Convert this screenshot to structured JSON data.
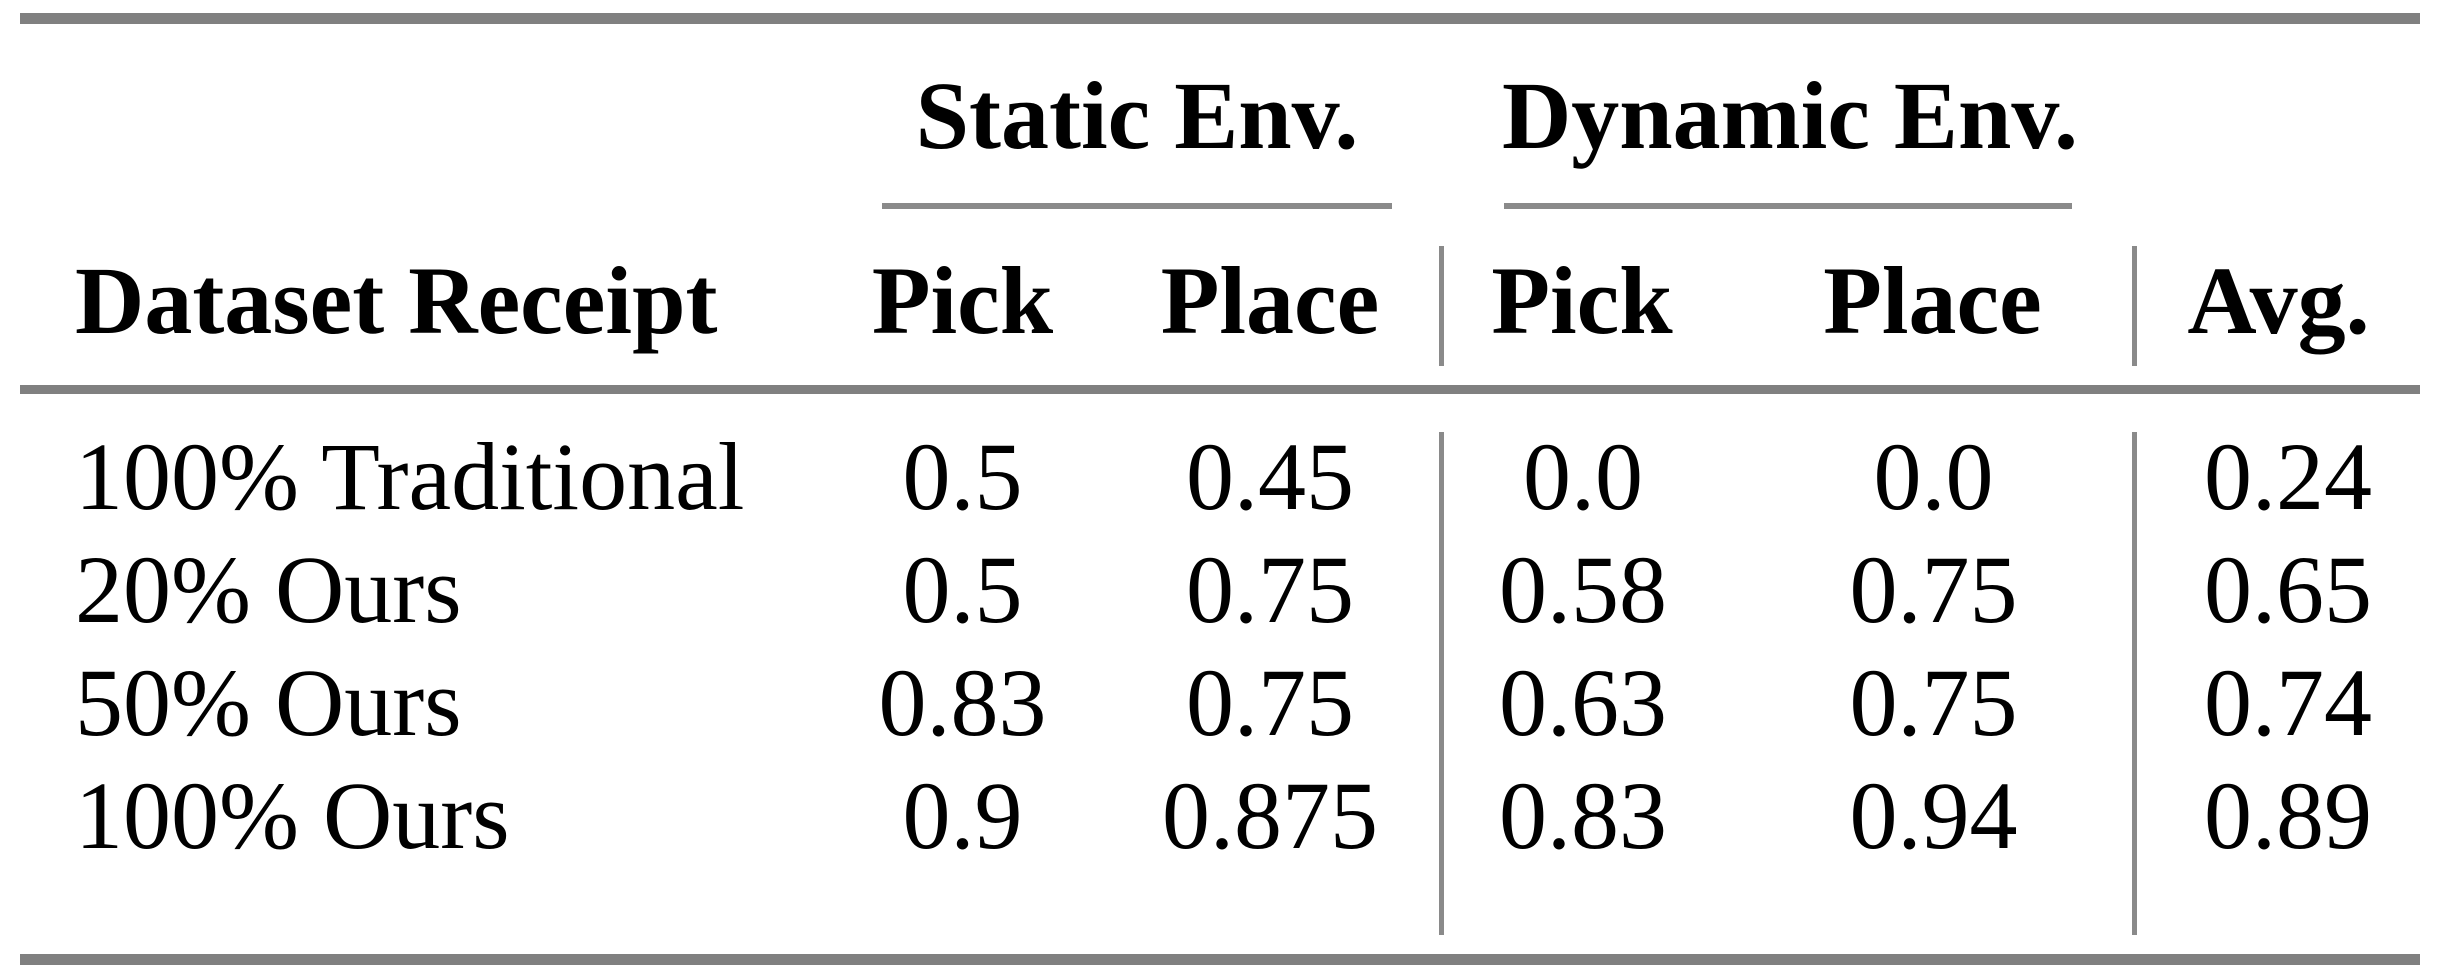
{
  "table": {
    "col_groups": {
      "static_label": "Static Env.",
      "dynamic_label": "Dynamic Env."
    },
    "headers": {
      "row_header": "Dataset Receipt",
      "static_pick": "Pick",
      "static_place": "Place",
      "dynamic_pick": "Pick",
      "dynamic_place": "Place",
      "avg": "Avg."
    },
    "rows": [
      {
        "dataset": "100% Traditional",
        "static_pick": "0.5",
        "static_place": "0.45",
        "dynamic_pick": "0.0",
        "dynamic_place": "0.0",
        "avg": "0.24"
      },
      {
        "dataset": "20% Ours",
        "static_pick": "0.5",
        "static_place": "0.75",
        "dynamic_pick": "0.58",
        "dynamic_place": "0.75",
        "avg": "0.65"
      },
      {
        "dataset": "50% Ours",
        "static_pick": "0.83",
        "static_place": "0.75",
        "dynamic_pick": "0.63",
        "dynamic_place": "0.75",
        "avg": "0.74"
      },
      {
        "dataset": "100% Ours",
        "static_pick": "0.9",
        "static_place": "0.875",
        "dynamic_pick": "0.83",
        "dynamic_place": "0.94",
        "avg": "0.89"
      }
    ],
    "colors": {
      "rule_gray": "#808080",
      "text": "#000000",
      "background": "#ffffff"
    }
  },
  "chart_data": {
    "type": "table",
    "title": "",
    "column_groups": [
      "",
      "Static Env.",
      "Static Env.",
      "Dynamic Env.",
      "Dynamic Env.",
      ""
    ],
    "columns": [
      "Dataset Receipt",
      "Pick",
      "Place",
      "Pick",
      "Place",
      "Avg."
    ],
    "rows": [
      [
        "100% Traditional",
        0.5,
        0.45,
        0.0,
        0.0,
        0.24
      ],
      [
        "20% Ours",
        0.5,
        0.75,
        0.58,
        0.75,
        0.65
      ],
      [
        "50% Ours",
        0.83,
        0.75,
        0.63,
        0.75,
        0.74
      ],
      [
        "100% Ours",
        0.9,
        0.875,
        0.83,
        0.94,
        0.89
      ]
    ]
  }
}
